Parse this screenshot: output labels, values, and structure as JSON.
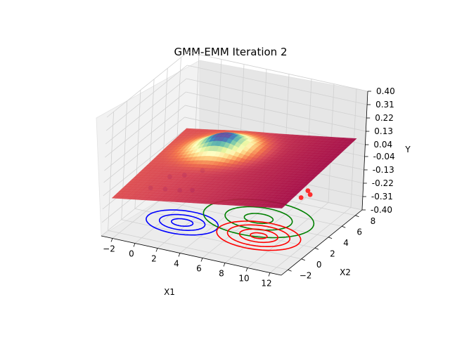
{
  "chart_data": {
    "type": "surface3d",
    "title": "GMM-EMM Iteration 2",
    "xlabel": "X1",
    "ylabel": "X2",
    "zlabel": "Y",
    "x_ticks": [
      "−2",
      "0",
      "2",
      "4",
      "6",
      "8",
      "10",
      "12"
    ],
    "y_ticks": [
      "−2",
      "0",
      "2",
      "4",
      "6",
      "8"
    ],
    "z_ticks": [
      "-0.40",
      "-0.31",
      "-0.22",
      "-0.13",
      "-0.04",
      "0.04",
      "0.13",
      "0.22",
      "0.31",
      "0.40"
    ],
    "xlim": [
      -3,
      13
    ],
    "ylim": [
      -3,
      9
    ],
    "zlim": [
      -0.4,
      0.4
    ],
    "surface_colormap": "Spectral",
    "grid": true,
    "contour_sets": [
      {
        "color": "#0000ff",
        "center": [
          1.5,
          1.5
        ],
        "radii": [
          0.9,
          1.9,
          3.0
        ]
      },
      {
        "color": "#008000",
        "center": [
          6.5,
          4.5
        ],
        "radii": [
          1.2,
          2.8,
          4.6
        ]
      },
      {
        "color": "#ff0000",
        "center": [
          8.0,
          2.0
        ],
        "radii": [
          0.7,
          1.6,
          2.6,
          3.5
        ]
      }
    ],
    "scatter_series": [
      {
        "color": "#1f3cff",
        "points": [
          [
            0,
            -1,
            -0.1
          ],
          [
            1,
            -0.5,
            -0.11
          ],
          [
            2,
            0,
            -0.12
          ],
          [
            3,
            0.2,
            -0.11
          ],
          [
            1.5,
            1.5,
            -0.08
          ],
          [
            2.5,
            2.5,
            -0.07
          ],
          [
            0.5,
            1,
            -0.09
          ]
        ]
      },
      {
        "color": "#ff1a1a",
        "points": [
          [
            11,
            3,
            -0.13
          ],
          [
            11.5,
            3.5,
            -0.12
          ],
          [
            11,
            4,
            -0.12
          ]
        ]
      }
    ]
  }
}
